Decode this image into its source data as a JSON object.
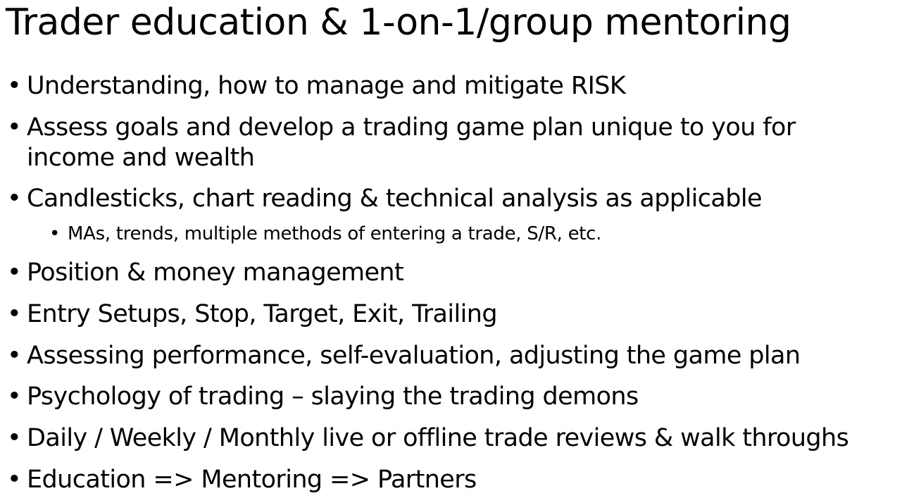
{
  "slide": {
    "title": "Trader education & 1-on-1/group mentoring",
    "bullet_glyph": "•",
    "items": [
      {
        "text": "Understanding, how to manage and mitigate RISK"
      },
      {
        "text": "Assess goals and develop a trading game plan unique to you for"
      },
      {
        "text": "income and wealth"
      },
      {
        "text": "Candlesticks, chart reading & technical analysis as applicable"
      },
      {
        "text": "MAs, trends, multiple methods of entering a trade, S/R, etc."
      },
      {
        "text": "Position & money management"
      },
      {
        "text": "Entry Setups, Stop, Target, Exit, Trailing"
      },
      {
        "text": "Assessing performance, self-evaluation, adjusting the game plan"
      },
      {
        "text": "Psychology of trading – slaying the trading demons"
      },
      {
        "text": "Daily / Weekly / Monthly live or offline trade reviews & walk throughs"
      },
      {
        "text": "Education => Mentoring => Partners"
      }
    ]
  }
}
